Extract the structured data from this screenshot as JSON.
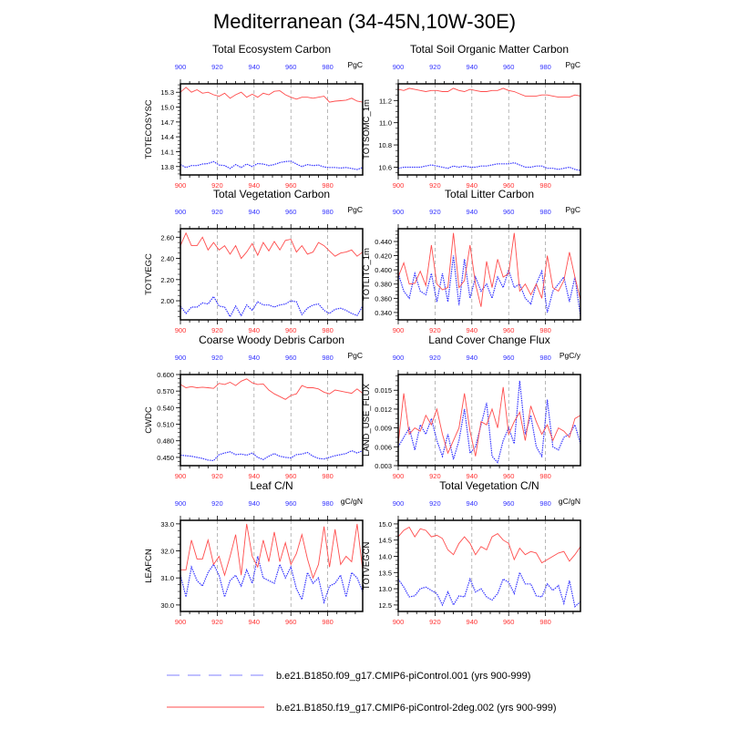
{
  "title": "Mediterranean (34-45N,10W-30E)",
  "colors": {
    "series_a": "#3333ff",
    "series_b": "#ff4d4d",
    "x_bottom_ticks": "#ff3333",
    "x_top_ticks": "#3333ff",
    "grid": "#999999"
  },
  "legend": {
    "placement": "bottom",
    "items": [
      {
        "label": "b.e21.B1850.f09_g17.CMIP6-piControl.001 (yrs 900-999)",
        "color": "#8080ff",
        "style": "dashed"
      },
      {
        "label": "b.e21.B1850.f19_g17.CMIP6-piControl-2deg.002 (yrs 900-999)",
        "color": "#ff4d4d",
        "style": "solid"
      }
    ]
  },
  "chart_data": [
    {
      "type": "line",
      "title": "Total Ecosystem Carbon",
      "ylabel": "TOTECOSYSC",
      "units": "PgC",
      "xlim": [
        900,
        999
      ],
      "ylim": [
        13.63,
        15.47
      ],
      "xticks": [
        "900",
        "920",
        "940",
        "960",
        "980"
      ],
      "yticks": [
        "13.8",
        "14.1",
        "14.4",
        "14.7",
        "15.0",
        "15.3"
      ],
      "grid": "x-dashed",
      "series": [
        {
          "name": "b.e21.B1850.f09_g17.CMIP6-piControl.001",
          "values": [
            13.84,
            13.78,
            13.82,
            13.82,
            13.85,
            13.86,
            13.9,
            13.83,
            13.82,
            13.76,
            13.84,
            13.78,
            13.85,
            13.8,
            13.86,
            13.85,
            13.82,
            13.84,
            13.88,
            13.9,
            13.91,
            13.85,
            13.8,
            13.84,
            13.82,
            13.83,
            13.79,
            13.78,
            13.78,
            13.77,
            13.78,
            13.76,
            13.74,
            13.78
          ]
        },
        {
          "name": "b.e21.B1850.f19_g17.CMIP6-piControl-2deg.002",
          "values": [
            15.3,
            15.4,
            15.3,
            15.35,
            15.28,
            15.3,
            15.25,
            15.22,
            15.28,
            15.18,
            15.25,
            15.3,
            15.2,
            15.26,
            15.2,
            15.28,
            15.25,
            15.32,
            15.33,
            15.25,
            15.2,
            15.16,
            15.2,
            15.2,
            15.18,
            15.2,
            15.22,
            15.1,
            15.12,
            15.13,
            15.14,
            15.18,
            15.12,
            15.1
          ]
        }
      ]
    },
    {
      "type": "line",
      "title": "Total Soil Organic Matter Carbon",
      "ylabel": "TOTSOMC_1m",
      "units": "PgC",
      "xlim": [
        900,
        999
      ],
      "ylim": [
        10.53,
        11.35
      ],
      "xticks": [
        "900",
        "920",
        "940",
        "960",
        "980"
      ],
      "yticks": [
        "10.6",
        "10.8",
        "11.0",
        "11.2"
      ],
      "grid": "x-dashed",
      "series": [
        {
          "name": "b.e21.B1850.f09_g17.CMIP6-piControl.001",
          "values": [
            10.59,
            10.6,
            10.6,
            10.6,
            10.6,
            10.61,
            10.62,
            10.61,
            10.6,
            10.59,
            10.61,
            10.6,
            10.61,
            10.6,
            10.6,
            10.61,
            10.61,
            10.62,
            10.63,
            10.63,
            10.63,
            10.64,
            10.62,
            10.6,
            10.6,
            10.61,
            10.61,
            10.59,
            10.59,
            10.58,
            10.59,
            10.6,
            10.58,
            10.57
          ]
        },
        {
          "name": "b.e21.B1850.f19_g17.CMIP6-piControl-2deg.002",
          "values": [
            11.3,
            11.29,
            11.31,
            11.3,
            11.29,
            11.28,
            11.29,
            11.29,
            11.28,
            11.28,
            11.31,
            11.29,
            11.28,
            11.3,
            11.29,
            11.28,
            11.28,
            11.29,
            11.29,
            11.31,
            11.29,
            11.28,
            11.26,
            11.24,
            11.24,
            11.24,
            11.25,
            11.25,
            11.24,
            11.23,
            11.23,
            11.23,
            11.25,
            11.24
          ]
        }
      ]
    },
    {
      "type": "line",
      "title": "Total Vegetation Carbon",
      "ylabel": "TOTVEGC",
      "units": "PgC",
      "xlim": [
        900,
        999
      ],
      "ylim": [
        1.82,
        2.68
      ],
      "xticks": [
        "900",
        "920",
        "940",
        "960",
        "980"
      ],
      "yticks": [
        "2.00",
        "2.20",
        "2.40",
        "2.60"
      ],
      "grid": "x-dashed",
      "series": [
        {
          "name": "b.e21.B1850.f09_g17.CMIP6-piControl.001",
          "values": [
            1.95,
            1.88,
            1.94,
            1.94,
            1.98,
            1.97,
            2.04,
            1.95,
            1.94,
            1.85,
            1.95,
            1.86,
            1.96,
            1.91,
            1.99,
            1.96,
            1.96,
            1.94,
            1.96,
            1.97,
            2.0,
            1.99,
            1.87,
            1.93,
            1.96,
            1.97,
            1.91,
            1.88,
            1.92,
            1.93,
            1.91,
            1.88,
            1.86,
            1.95
          ]
        },
        {
          "name": "b.e21.B1850.f19_g17.CMIP6-piControl-2deg.002",
          "values": [
            2.52,
            2.64,
            2.52,
            2.52,
            2.6,
            2.48,
            2.55,
            2.48,
            2.52,
            2.44,
            2.52,
            2.4,
            2.46,
            2.54,
            2.43,
            2.55,
            2.47,
            2.56,
            2.48,
            2.57,
            2.58,
            2.46,
            2.52,
            2.44,
            2.46,
            2.55,
            2.52,
            2.47,
            2.42,
            2.45,
            2.46,
            2.48,
            2.42,
            2.46
          ]
        }
      ]
    },
    {
      "type": "line",
      "title": "Total Litter Carbon",
      "ylabel": "TOTLITC_1m",
      "units": "PgC",
      "xlim": [
        900,
        999
      ],
      "ylim": [
        0.3296,
        0.458
      ],
      "xticks": [
        "900",
        "920",
        "940",
        "960",
        "980"
      ],
      "yticks": [
        "0.340",
        "0.360",
        "0.380",
        "0.400",
        "0.420",
        "0.440"
      ],
      "grid": "x-dashed",
      "series": [
        {
          "name": "b.e21.B1850.f09_g17.CMIP6-piControl.001",
          "values": [
            0.395,
            0.37,
            0.36,
            0.395,
            0.37,
            0.365,
            0.395,
            0.355,
            0.395,
            0.355,
            0.42,
            0.35,
            0.415,
            0.36,
            0.39,
            0.37,
            0.38,
            0.36,
            0.39,
            0.375,
            0.4,
            0.375,
            0.38,
            0.36,
            0.352,
            0.38,
            0.398,
            0.34,
            0.37,
            0.38,
            0.39,
            0.355,
            0.39,
            0.335
          ]
        },
        {
          "name": "b.e21.B1850.f19_g17.CMIP6-piControl-2deg.002",
          "values": [
            0.39,
            0.41,
            0.38,
            0.381,
            0.398,
            0.378,
            0.435,
            0.38,
            0.372,
            0.375,
            0.452,
            0.375,
            0.385,
            0.435,
            0.38,
            0.348,
            0.412,
            0.375,
            0.415,
            0.39,
            0.395,
            0.452,
            0.37,
            0.38,
            0.365,
            0.38,
            0.36,
            0.42,
            0.375,
            0.37,
            0.385,
            0.425,
            0.39,
            0.358
          ]
        }
      ]
    },
    {
      "type": "line",
      "title": "Coarse Woody Debris Carbon",
      "ylabel": "CWDC",
      "units": "PgC",
      "xlim": [
        900,
        999
      ],
      "ylim": [
        0.435,
        0.6
      ],
      "xticks": [
        "900",
        "920",
        "940",
        "960",
        "980"
      ],
      "yticks": [
        "0.450",
        "0.480",
        "0.510",
        "0.540",
        "0.570",
        "0.600"
      ],
      "grid": "x-dashed",
      "series": [
        {
          "name": "b.e21.B1850.f09_g17.CMIP6-piControl.001",
          "values": [
            0.454,
            0.453,
            0.452,
            0.45,
            0.448,
            0.445,
            0.444,
            0.455,
            0.458,
            0.46,
            0.455,
            0.456,
            0.454,
            0.458,
            0.45,
            0.446,
            0.452,
            0.457,
            0.452,
            0.45,
            0.449,
            0.455,
            0.456,
            0.459,
            0.452,
            0.448,
            0.447,
            0.45,
            0.453,
            0.455,
            0.457,
            0.462,
            0.458,
            0.462
          ]
        },
        {
          "name": "b.e21.B1850.f19_g17.CMIP6-piControl-2deg.002",
          "values": [
            0.582,
            0.576,
            0.578,
            0.576,
            0.577,
            0.576,
            0.575,
            0.584,
            0.582,
            0.586,
            0.58,
            0.588,
            0.592,
            0.585,
            0.582,
            0.583,
            0.572,
            0.565,
            0.56,
            0.555,
            0.562,
            0.565,
            0.58,
            0.576,
            0.576,
            0.574,
            0.568,
            0.565,
            0.572,
            0.57,
            0.568,
            0.566,
            0.574,
            0.566
          ]
        }
      ]
    },
    {
      "type": "line",
      "title": "Land Cover Change Flux",
      "ylabel": "LAND_USE_FLUX",
      "units": "PgC/y",
      "xlim": [
        900,
        999
      ],
      "ylim": [
        0.003,
        0.0175
      ],
      "xticks": [
        "900",
        "920",
        "940",
        "960",
        "980"
      ],
      "yticks": [
        "0.003",
        "0.006",
        "0.009",
        "0.012",
        "0.015"
      ],
      "grid": "x-dashed",
      "series": [
        {
          "name": "b.e21.B1850.f09_g17.CMIP6-piControl.001",
          "values": [
            0.006,
            0.0075,
            0.009,
            0.0055,
            0.0095,
            0.008,
            0.0105,
            0.007,
            0.0045,
            0.008,
            0.004,
            0.007,
            0.012,
            0.005,
            0.006,
            0.0095,
            0.013,
            0.0045,
            0.0035,
            0.007,
            0.009,
            0.0065,
            0.0165,
            0.008,
            0.011,
            0.006,
            0.0045,
            0.0135,
            0.006,
            0.0055,
            0.0075,
            0.008,
            0.0095,
            0.0065
          ]
        },
        {
          "name": "b.e21.B1850.f19_g17.CMIP6-piControl-2deg.002",
          "values": [
            0.0065,
            0.0145,
            0.008,
            0.009,
            0.0085,
            0.011,
            0.0095,
            0.012,
            0.008,
            0.005,
            0.007,
            0.009,
            0.0145,
            0.0085,
            0.0045,
            0.01,
            0.0095,
            0.012,
            0.009,
            0.0155,
            0.008,
            0.01,
            0.0115,
            0.007,
            0.0125,
            0.01,
            0.008,
            0.0095,
            0.007,
            0.009,
            0.0085,
            0.0075,
            0.0105,
            0.011
          ]
        }
      ]
    },
    {
      "type": "line",
      "title": "Leaf C/N",
      "ylabel": "LEAFCN",
      "units": "gC/gN",
      "xlim": [
        900,
        999
      ],
      "ylim": [
        29.76,
        33.13
      ],
      "xticks": [
        "900",
        "920",
        "940",
        "960",
        "980"
      ],
      "yticks": [
        "30.0",
        "31.0",
        "32.0",
        "33.0"
      ],
      "grid": "x-dashed",
      "series": [
        {
          "name": "b.e21.B1850.f09_g17.CMIP6-piControl.001",
          "values": [
            31.1,
            30.3,
            31.4,
            30.9,
            30.7,
            31.2,
            31.5,
            31.1,
            30.3,
            30.9,
            31.1,
            30.7,
            31.3,
            30.8,
            31.8,
            31.0,
            30.9,
            30.8,
            31.5,
            31.0,
            31.4,
            30.6,
            30.2,
            31.2,
            30.8,
            31.0,
            30.1,
            30.7,
            30.8,
            31.1,
            30.3,
            31.2,
            31.0,
            30.5
          ]
        },
        {
          "name": "b.e21.B1850.f19_g17.CMIP6-piControl-2deg.002",
          "values": [
            31.3,
            31.3,
            32.4,
            31.7,
            31.7,
            32.4,
            31.5,
            31.8,
            31.1,
            31.8,
            32.6,
            31.1,
            33.0,
            31.8,
            31.4,
            32.4,
            31.6,
            32.7,
            31.6,
            32.3,
            31.5,
            31.9,
            32.6,
            31.7,
            31.0,
            31.5,
            32.9,
            31.4,
            32.8,
            31.5,
            31.8,
            31.6,
            33.0,
            31.3
          ]
        }
      ]
    },
    {
      "type": "line",
      "title": "Total Vegetation C/N",
      "ylabel": "TOTVEGCN",
      "units": "gC/gN",
      "xlim": [
        900,
        999
      ],
      "ylim": [
        12.3,
        15.11
      ],
      "xticks": [
        "900",
        "920",
        "940",
        "960",
        "980"
      ],
      "yticks": [
        "12.5",
        "13.0",
        "13.5",
        "14.0",
        "14.5",
        "15.0"
      ],
      "grid": "x-dashed",
      "series": [
        {
          "name": "b.e21.B1850.f09_g17.CMIP6-piControl.001",
          "values": [
            13.3,
            13.05,
            12.75,
            12.78,
            13.0,
            13.05,
            12.95,
            12.85,
            12.5,
            12.9,
            12.5,
            12.78,
            12.75,
            13.3,
            12.9,
            13.0,
            12.75,
            12.65,
            12.85,
            13.3,
            13.2,
            12.85,
            13.5,
            13.15,
            13.15,
            12.78,
            12.75,
            13.15,
            12.95,
            13.1,
            12.55,
            13.25,
            12.45,
            12.6
          ]
        },
        {
          "name": "b.e21.B1850.f19_g17.CMIP6-piControl-2deg.002",
          "values": [
            14.6,
            14.8,
            14.9,
            14.6,
            14.85,
            14.8,
            14.6,
            14.65,
            14.55,
            14.2,
            14.05,
            14.4,
            14.6,
            14.4,
            14.05,
            14.3,
            14.2,
            14.6,
            14.7,
            14.5,
            14.4,
            13.9,
            14.25,
            14.05,
            14.15,
            14.1,
            13.8,
            13.9,
            14.0,
            14.1,
            14.15,
            13.85,
            14.05,
            14.3
          ]
        }
      ]
    }
  ],
  "x": [
    900,
    903,
    906,
    909,
    912,
    915,
    918,
    921,
    924,
    927,
    930,
    933,
    936,
    939,
    942,
    945,
    948,
    951,
    954,
    957,
    960,
    963,
    966,
    969,
    972,
    975,
    978,
    981,
    984,
    987,
    990,
    993,
    996,
    999
  ]
}
